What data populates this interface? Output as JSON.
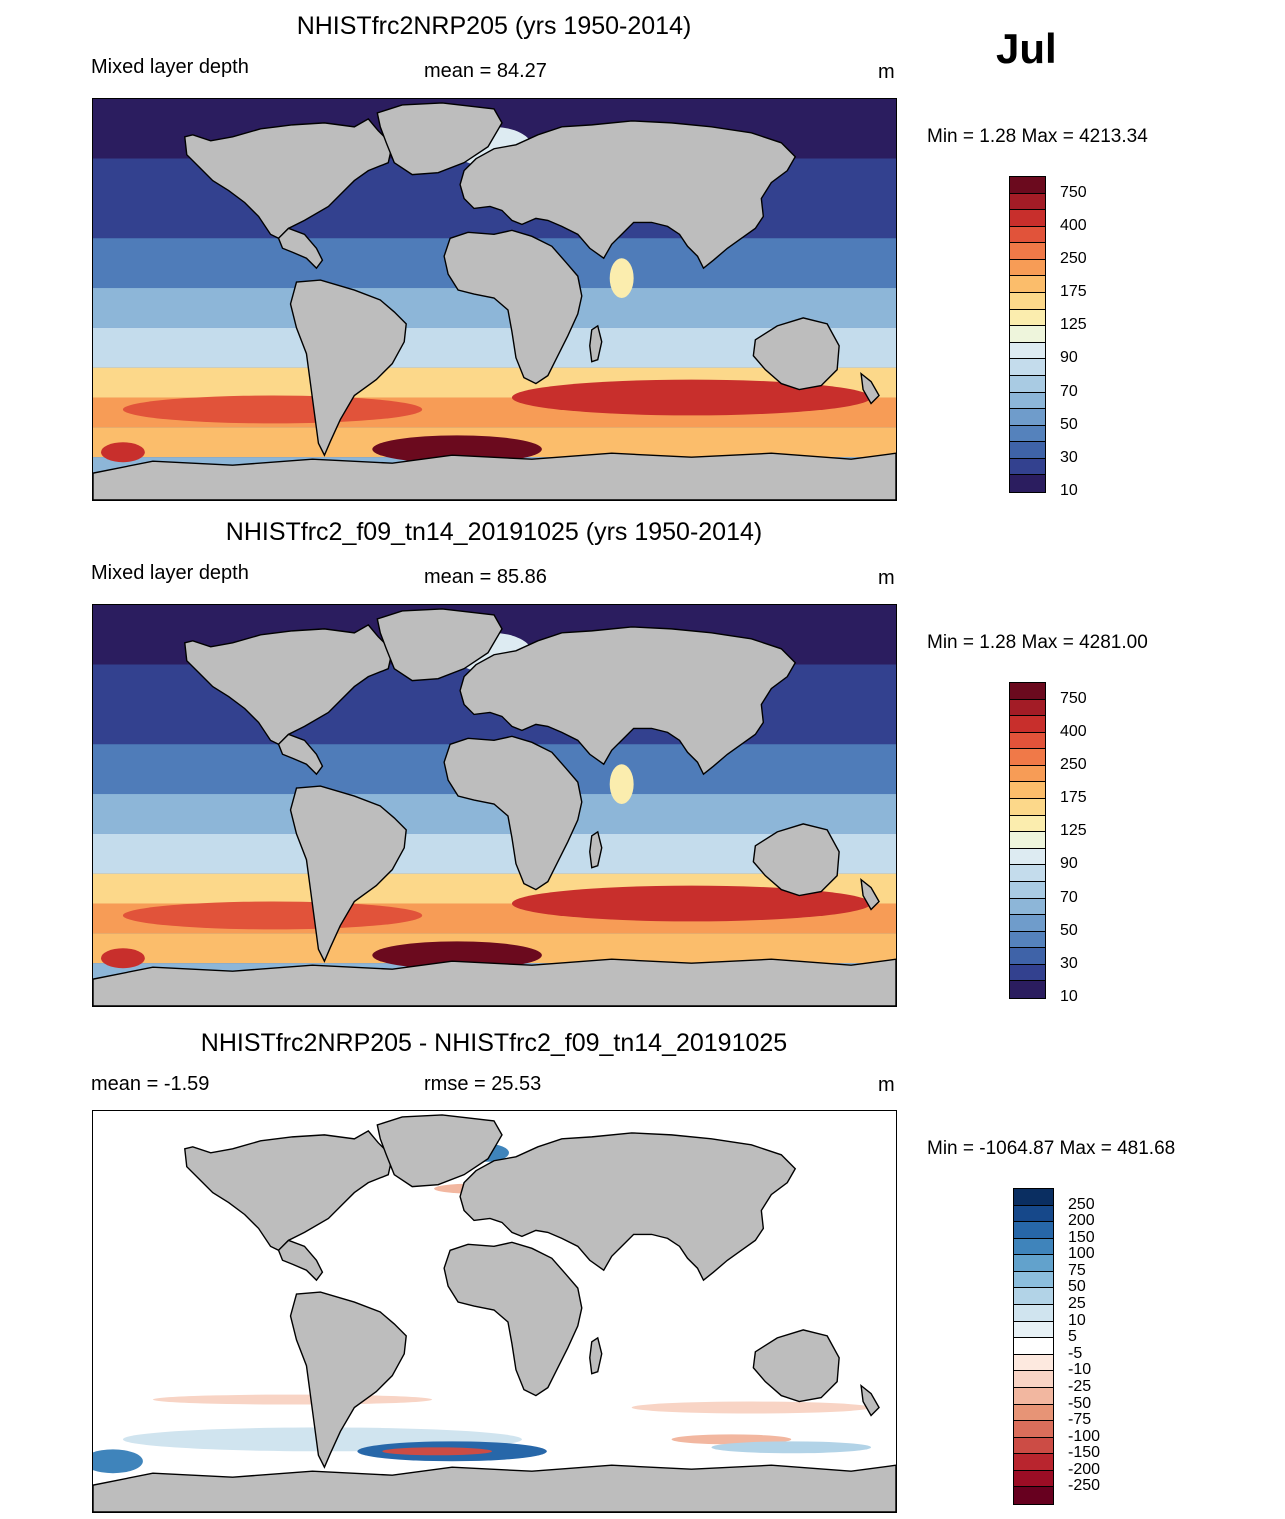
{
  "month": "Jul",
  "panels": [
    {
      "title": "NHISTfrc2NRP205 (yrs 1950-2014)",
      "left_label": "Mixed layer depth",
      "center_label": "mean =  84.27",
      "unit": "m",
      "minmax": "Min =    1.28 Max = 4213.34",
      "map_type": "absolute"
    },
    {
      "title": "NHISTfrc2_f09_tn14_20191025 (yrs 1950-2014)",
      "left_label": "Mixed layer depth",
      "center_label": "mean =  85.86",
      "unit": "m",
      "minmax": "Min =    1.28 Max = 4281.00",
      "map_type": "absolute"
    },
    {
      "title": "NHISTfrc2NRP205 - NHISTfrc2_f09_tn14_20191025",
      "left_label": "mean =  -1.59",
      "center_label": "rmse =  25.53",
      "unit": "m",
      "minmax": "Min = -1064.87 Max = 481.68",
      "map_type": "difference"
    }
  ],
  "colorbar_abs": {
    "colors": [
      "#2b1d5f",
      "#33418f",
      "#3f63a8",
      "#5582bc",
      "#6f9ccb",
      "#8db6d8",
      "#a9cbe3",
      "#c4dcec",
      "#ddebf2",
      "#eef5dc",
      "#fbedae",
      "#fcd88a",
      "#fbbd6b",
      "#f79c56",
      "#f07948",
      "#e1533a",
      "#c82f2c",
      "#a31c26",
      "#6b0a1e"
    ],
    "labels": [
      "750",
      "400",
      "250",
      "175",
      "125",
      "90",
      "70",
      "50",
      "30",
      "10"
    ]
  },
  "colorbar_diff": {
    "colors": [
      "#67001f",
      "#9b0d25",
      "#b9252e",
      "#cc4c45",
      "#da6e5b",
      "#e79476",
      "#f2b7a0",
      "#f8d4c5",
      "#fde9df",
      "#ffffff",
      "#e7f1f6",
      "#d0e4ef",
      "#b2d3e7",
      "#8cbedd",
      "#62a2cc",
      "#3f84bb",
      "#2767a9",
      "#16488a",
      "#0a2e61"
    ],
    "labels": [
      "250",
      "200",
      "150",
      "100",
      "75",
      "50",
      "25",
      "10",
      "5",
      "-5",
      "-10",
      "-25",
      "-50",
      "-75",
      "-100",
      "-150",
      "-200",
      "-250"
    ]
  }
}
